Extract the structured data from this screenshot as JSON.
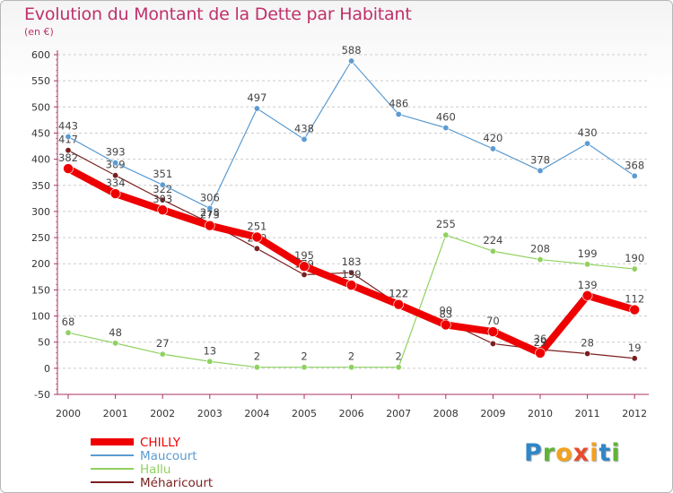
{
  "title": "Evolution du Montant de la Dette par Habitant",
  "subtitle": "(en €)",
  "logo": {
    "letters": [
      "P",
      "r",
      "o",
      "x",
      "i",
      "t",
      "i"
    ],
    "colors": [
      "#2f86c8",
      "#5fb336",
      "#f3a11e",
      "#e84b2d",
      "#f3a11e",
      "#2f86c8",
      "#5fb336"
    ]
  },
  "chart_data": {
    "type": "line",
    "x": [
      "2000",
      "2001",
      "2002",
      "2003",
      "2004",
      "2005",
      "2006",
      "2007",
      "2008",
      "2009",
      "2010",
      "2011",
      "2012"
    ],
    "ylim": [
      -50,
      600
    ],
    "yticks": [
      -50,
      0,
      50,
      100,
      150,
      200,
      250,
      300,
      350,
      400,
      450,
      500,
      550,
      600
    ],
    "grid": "horizontal-dashed",
    "legend": "bottom-left",
    "series": [
      {
        "name": "Méharicourt",
        "color": "#7a1f1f",
        "values": [
          417,
          369,
          322,
          278,
          229,
          179,
          183,
          122,
          90,
          47,
          36,
          28,
          19
        ],
        "labels": [
          "417",
          "369",
          "322",
          "278",
          "229",
          "179",
          "183",
          "122",
          "90",
          "47",
          "36",
          "28",
          "19"
        ]
      },
      {
        "name": "Hallu",
        "color": "#8fd160",
        "values": [
          68,
          48,
          27,
          13,
          2,
          2,
          2,
          2,
          255,
          224,
          208,
          199,
          190
        ],
        "labels": [
          "68",
          "48",
          "27",
          "13",
          "2",
          "2",
          "2",
          "2",
          "255",
          "224",
          "208",
          "199",
          "190"
        ]
      },
      {
        "name": "Maucourt",
        "color": "#5b9bd1",
        "values": [
          443,
          393,
          351,
          306,
          497,
          438,
          588,
          486,
          460,
          420,
          378,
          430,
          368
        ],
        "labels": [
          "443",
          "393",
          "351",
          "306",
          "497",
          "438",
          "588",
          "486",
          "460",
          "420",
          "378",
          "430",
          "368"
        ]
      },
      {
        "name": "CHILLY",
        "color": "#ee0000",
        "values": [
          382,
          334,
          303,
          273,
          251,
          195,
          159,
          122,
          83,
          70,
          29,
          139,
          112
        ],
        "labels": [
          "382",
          "334",
          "303",
          "273",
          "251",
          "195",
          "159",
          "122",
          "83",
          "70",
          "29",
          "139",
          "112"
        ]
      }
    ],
    "legend_order": [
      "CHILLY",
      "Maucourt",
      "Hallu",
      "Méharicourt"
    ]
  }
}
